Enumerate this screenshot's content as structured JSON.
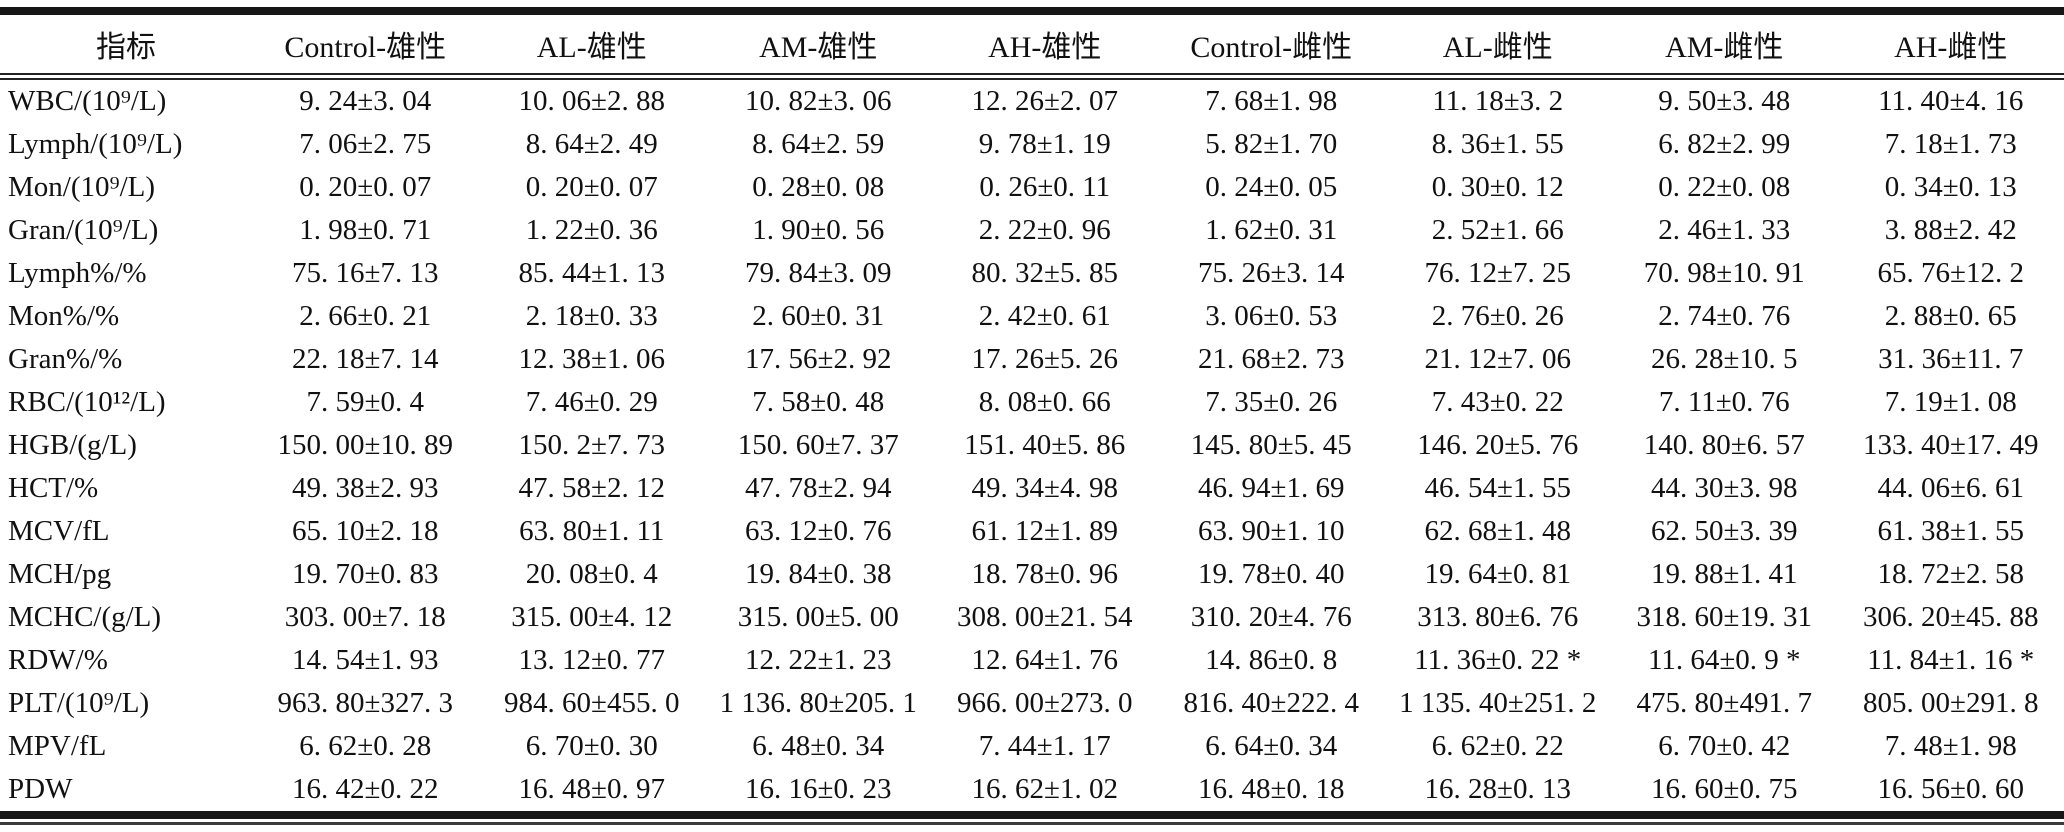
{
  "colors": {
    "background": "#ffffff",
    "text": "#111111",
    "rule": "#161616"
  },
  "table": {
    "columns": [
      "指标",
      "Control-雄性",
      "AL-雄性",
      "AM-雄性",
      "AH-雄性",
      "Control-雌性",
      "AL-雌性",
      "AM-雌性",
      "AH-雌性"
    ],
    "rows": [
      {
        "label": "WBC/(10⁹/L)",
        "values": [
          "9. 24±3. 04",
          "10. 06±2. 88",
          "10. 82±3. 06",
          "12. 26±2. 07",
          "7. 68±1. 98",
          "11. 18±3. 2",
          "9. 50±3. 48",
          "11. 40±4. 16"
        ]
      },
      {
        "label": "Lymph/(10⁹/L)",
        "values": [
          "7. 06±2. 75",
          "8. 64±2. 49",
          "8. 64±2. 59",
          "9. 78±1. 19",
          "5. 82±1. 70",
          "8. 36±1. 55",
          "6. 82±2. 99",
          "7. 18±1. 73"
        ]
      },
      {
        "label": "Mon/(10⁹/L)",
        "values": [
          "0. 20±0. 07",
          "0. 20±0. 07",
          "0. 28±0. 08",
          "0. 26±0. 11",
          "0. 24±0. 05",
          "0. 30±0. 12",
          "0. 22±0. 08",
          "0. 34±0. 13"
        ]
      },
      {
        "label": "Gran/(10⁹/L)",
        "values": [
          "1. 98±0. 71",
          "1. 22±0. 36",
          "1. 90±0. 56",
          "2. 22±0. 96",
          "1. 62±0. 31",
          "2. 52±1. 66",
          "2. 46±1. 33",
          "3. 88±2. 42"
        ]
      },
      {
        "label": "Lymph%/%",
        "values": [
          "75. 16±7. 13",
          "85. 44±1. 13",
          "79. 84±3. 09",
          "80. 32±5. 85",
          "75. 26±3. 14",
          "76. 12±7. 25",
          "70. 98±10. 91",
          "65. 76±12. 2"
        ]
      },
      {
        "label": "Mon%/%",
        "values": [
          "2. 66±0. 21",
          "2. 18±0. 33",
          "2. 60±0. 31",
          "2. 42±0. 61",
          "3. 06±0. 53",
          "2. 76±0. 26",
          "2. 74±0. 76",
          "2. 88±0. 65"
        ]
      },
      {
        "label": "Gran%/%",
        "values": [
          "22. 18±7. 14",
          "12. 38±1. 06",
          "17. 56±2. 92",
          "17. 26±5. 26",
          "21. 68±2. 73",
          "21. 12±7. 06",
          "26. 28±10. 5",
          "31. 36±11. 7"
        ]
      },
      {
        "label": "RBC/(10¹²/L)",
        "values": [
          "7. 59±0. 4",
          "7. 46±0. 29",
          "7. 58±0. 48",
          "8. 08±0. 66",
          "7. 35±0. 26",
          "7. 43±0. 22",
          "7. 11±0. 76",
          "7. 19±1. 08"
        ]
      },
      {
        "label": "HGB/(g/L)",
        "values": [
          "150. 00±10. 89",
          "150. 2±7. 73",
          "150. 60±7. 37",
          "151. 40±5. 86",
          "145. 80±5. 45",
          "146. 20±5. 76",
          "140. 80±6. 57",
          "133. 40±17. 49"
        ]
      },
      {
        "label": "HCT/%",
        "values": [
          "49. 38±2. 93",
          "47. 58±2. 12",
          "47. 78±2. 94",
          "49. 34±4. 98",
          "46. 94±1. 69",
          "46. 54±1. 55",
          "44. 30±3. 98",
          "44. 06±6. 61"
        ]
      },
      {
        "label": "MCV/fL",
        "values": [
          "65. 10±2. 18",
          "63. 80±1. 11",
          "63. 12±0. 76",
          "61. 12±1. 89",
          "63. 90±1. 10",
          "62. 68±1. 48",
          "62. 50±3. 39",
          "61. 38±1. 55"
        ]
      },
      {
        "label": "MCH/pg",
        "values": [
          "19. 70±0. 83",
          "20. 08±0. 4",
          "19. 84±0. 38",
          "18. 78±0. 96",
          "19. 78±0. 40",
          "19. 64±0. 81",
          "19. 88±1. 41",
          "18. 72±2. 58"
        ]
      },
      {
        "label": "MCHC/(g/L)",
        "values": [
          "303. 00±7. 18",
          "315. 00±4. 12",
          "315. 00±5. 00",
          "308. 00±21. 54",
          "310. 20±4. 76",
          "313. 80±6. 76",
          "318. 60±19. 31",
          "306. 20±45. 88"
        ]
      },
      {
        "label": "RDW/%",
        "values": [
          "14. 54±1. 93",
          "13. 12±0. 77",
          "12. 22±1. 23",
          "12. 64±1. 76",
          "14. 86±0. 8",
          "11. 36±0. 22 *",
          "11. 64±0. 9 *",
          "11. 84±1. 16 *"
        ]
      },
      {
        "label": "PLT/(10⁹/L)",
        "values": [
          "963. 80±327. 3",
          "984. 60±455. 0",
          "1 136. 80±205. 1",
          "966. 00±273. 0",
          "816. 40±222. 4",
          "1 135. 40±251. 2",
          "475. 80±491. 7",
          "805. 00±291. 8"
        ]
      },
      {
        "label": "MPV/fL",
        "values": [
          "6. 62±0. 28",
          "6. 70±0. 30",
          "6. 48±0. 34",
          "7. 44±1. 17",
          "6. 64±0. 34",
          "6. 62±0. 22",
          "6. 70±0. 42",
          "7. 48±1. 98"
        ]
      },
      {
        "label": "PDW",
        "values": [
          "16. 42±0. 22",
          "16. 48±0. 97",
          "16. 16±0. 23",
          "16. 62±1. 02",
          "16. 48±0. 18",
          "16. 28±0. 13",
          "16. 60±0. 75",
          "16. 56±0. 60"
        ]
      }
    ]
  }
}
